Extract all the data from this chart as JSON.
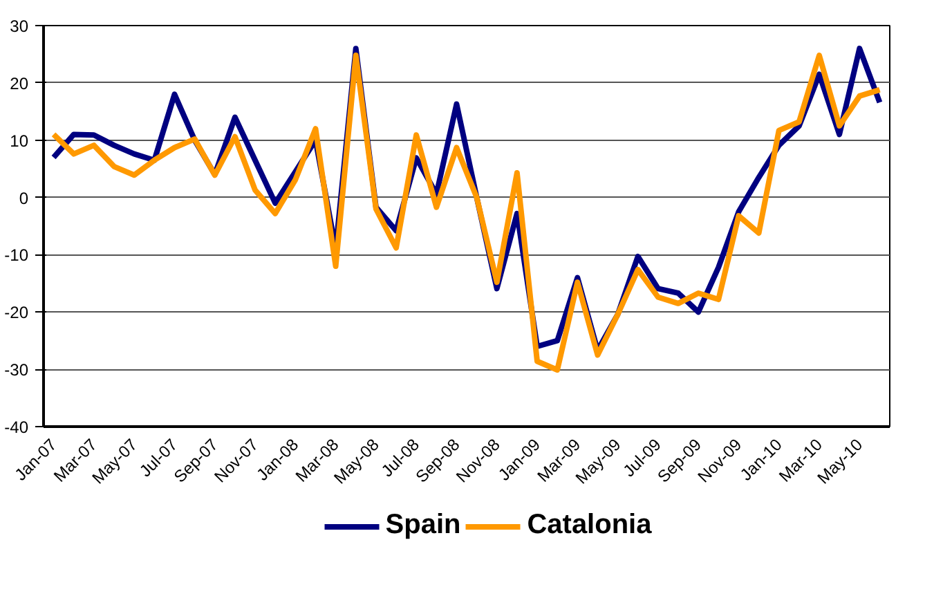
{
  "chart_data": {
    "type": "line",
    "categories": [
      "Jan-07",
      null,
      "Mar-07",
      null,
      "May-07",
      null,
      "Jul-07",
      null,
      "Sep-07",
      null,
      "Nov-07",
      null,
      "Jan-08",
      null,
      "Mar-08",
      null,
      "May-08",
      null,
      "Jul-08",
      null,
      "Sep-08",
      null,
      "Nov-08",
      null,
      "Jan-09",
      null,
      "Mar-09",
      null,
      "May-09",
      null,
      "Jul-09",
      null,
      "Sep-09",
      null,
      "Nov-09",
      null,
      "Jan-10",
      null,
      "Mar-10",
      null,
      "May-10",
      null
    ],
    "series": [
      {
        "name": "Spain",
        "color": "#000080",
        "values": [
          7,
          11,
          10.9,
          9.1,
          7.6,
          6.5,
          18,
          10,
          4,
          14,
          6.5,
          -1,
          4.5,
          10,
          -9,
          26,
          -1.7,
          -5.8,
          6.9,
          0.6,
          16.3,
          0,
          -15.9,
          -2.8,
          -26,
          -25,
          -14,
          -26.7,
          -20.4,
          -10.3,
          -15.9,
          -16.7,
          -20,
          -12.2,
          -2.5,
          3.5,
          9.1,
          12.5,
          21.5,
          11,
          26,
          16.6
        ]
      },
      {
        "name": "Catalonia",
        "color": "#ff9900",
        "values": [
          11,
          7.6,
          9.1,
          5.4,
          3.9,
          6.5,
          8.7,
          10.2,
          3.9,
          10.6,
          1.3,
          -2.8,
          3.1,
          12,
          -12,
          24.8,
          -2,
          -8.8,
          10.9,
          -1.7,
          8.7,
          0,
          -14.8,
          4.3,
          -28.6,
          -30.1,
          -14.8,
          -27.5,
          -20.4,
          -12.6,
          -17.4,
          -18.5,
          -16.7,
          -17.8,
          -3.2,
          -6.2,
          11.7,
          13.2,
          24.8,
          12.5,
          17.7,
          18.8
        ]
      }
    ],
    "ylim": [
      -40,
      30
    ],
    "yticks": [
      -40,
      -30,
      -20,
      -10,
      0,
      10,
      20,
      30
    ],
    "grid": "y",
    "legend": "bottom",
    "marker": "none",
    "line_style": "solid"
  }
}
